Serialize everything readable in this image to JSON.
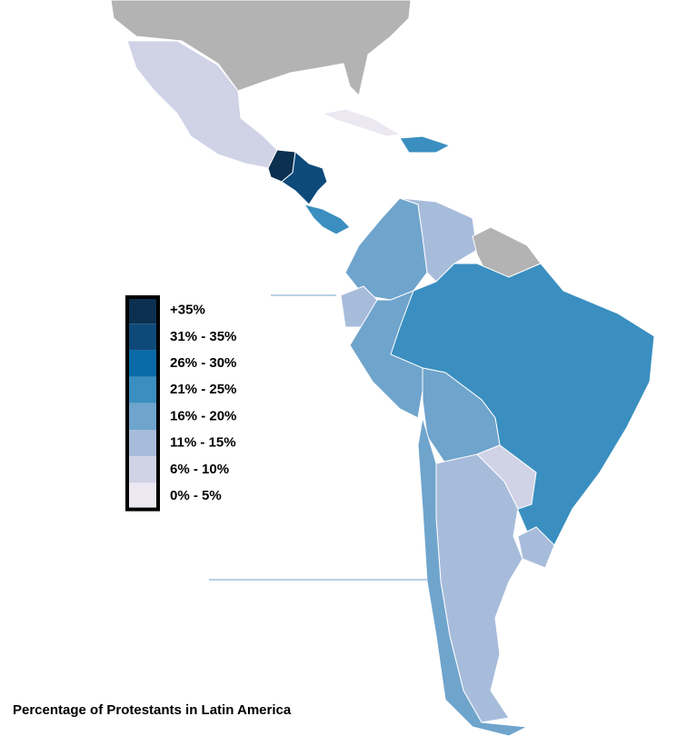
{
  "title": "Percentage of Protestants in Latin America",
  "legend": {
    "items": [
      {
        "label": "+35%",
        "color": "#0b3050"
      },
      {
        "label": "31% - 35%",
        "color": "#0d4a7a"
      },
      {
        "label": "26% - 30%",
        "color": "#0a6aa8"
      },
      {
        "label": "21% - 25%",
        "color": "#3a8fc0"
      },
      {
        "label": "16% - 20%",
        "color": "#6fa4cc"
      },
      {
        "label": "11% - 15%",
        "color": "#a7bcdb"
      },
      {
        "label": "6% - 10%",
        "color": "#d0d2e6"
      },
      {
        "label": "0% - 5%",
        "color": "#ece8f2"
      }
    ]
  }
}
